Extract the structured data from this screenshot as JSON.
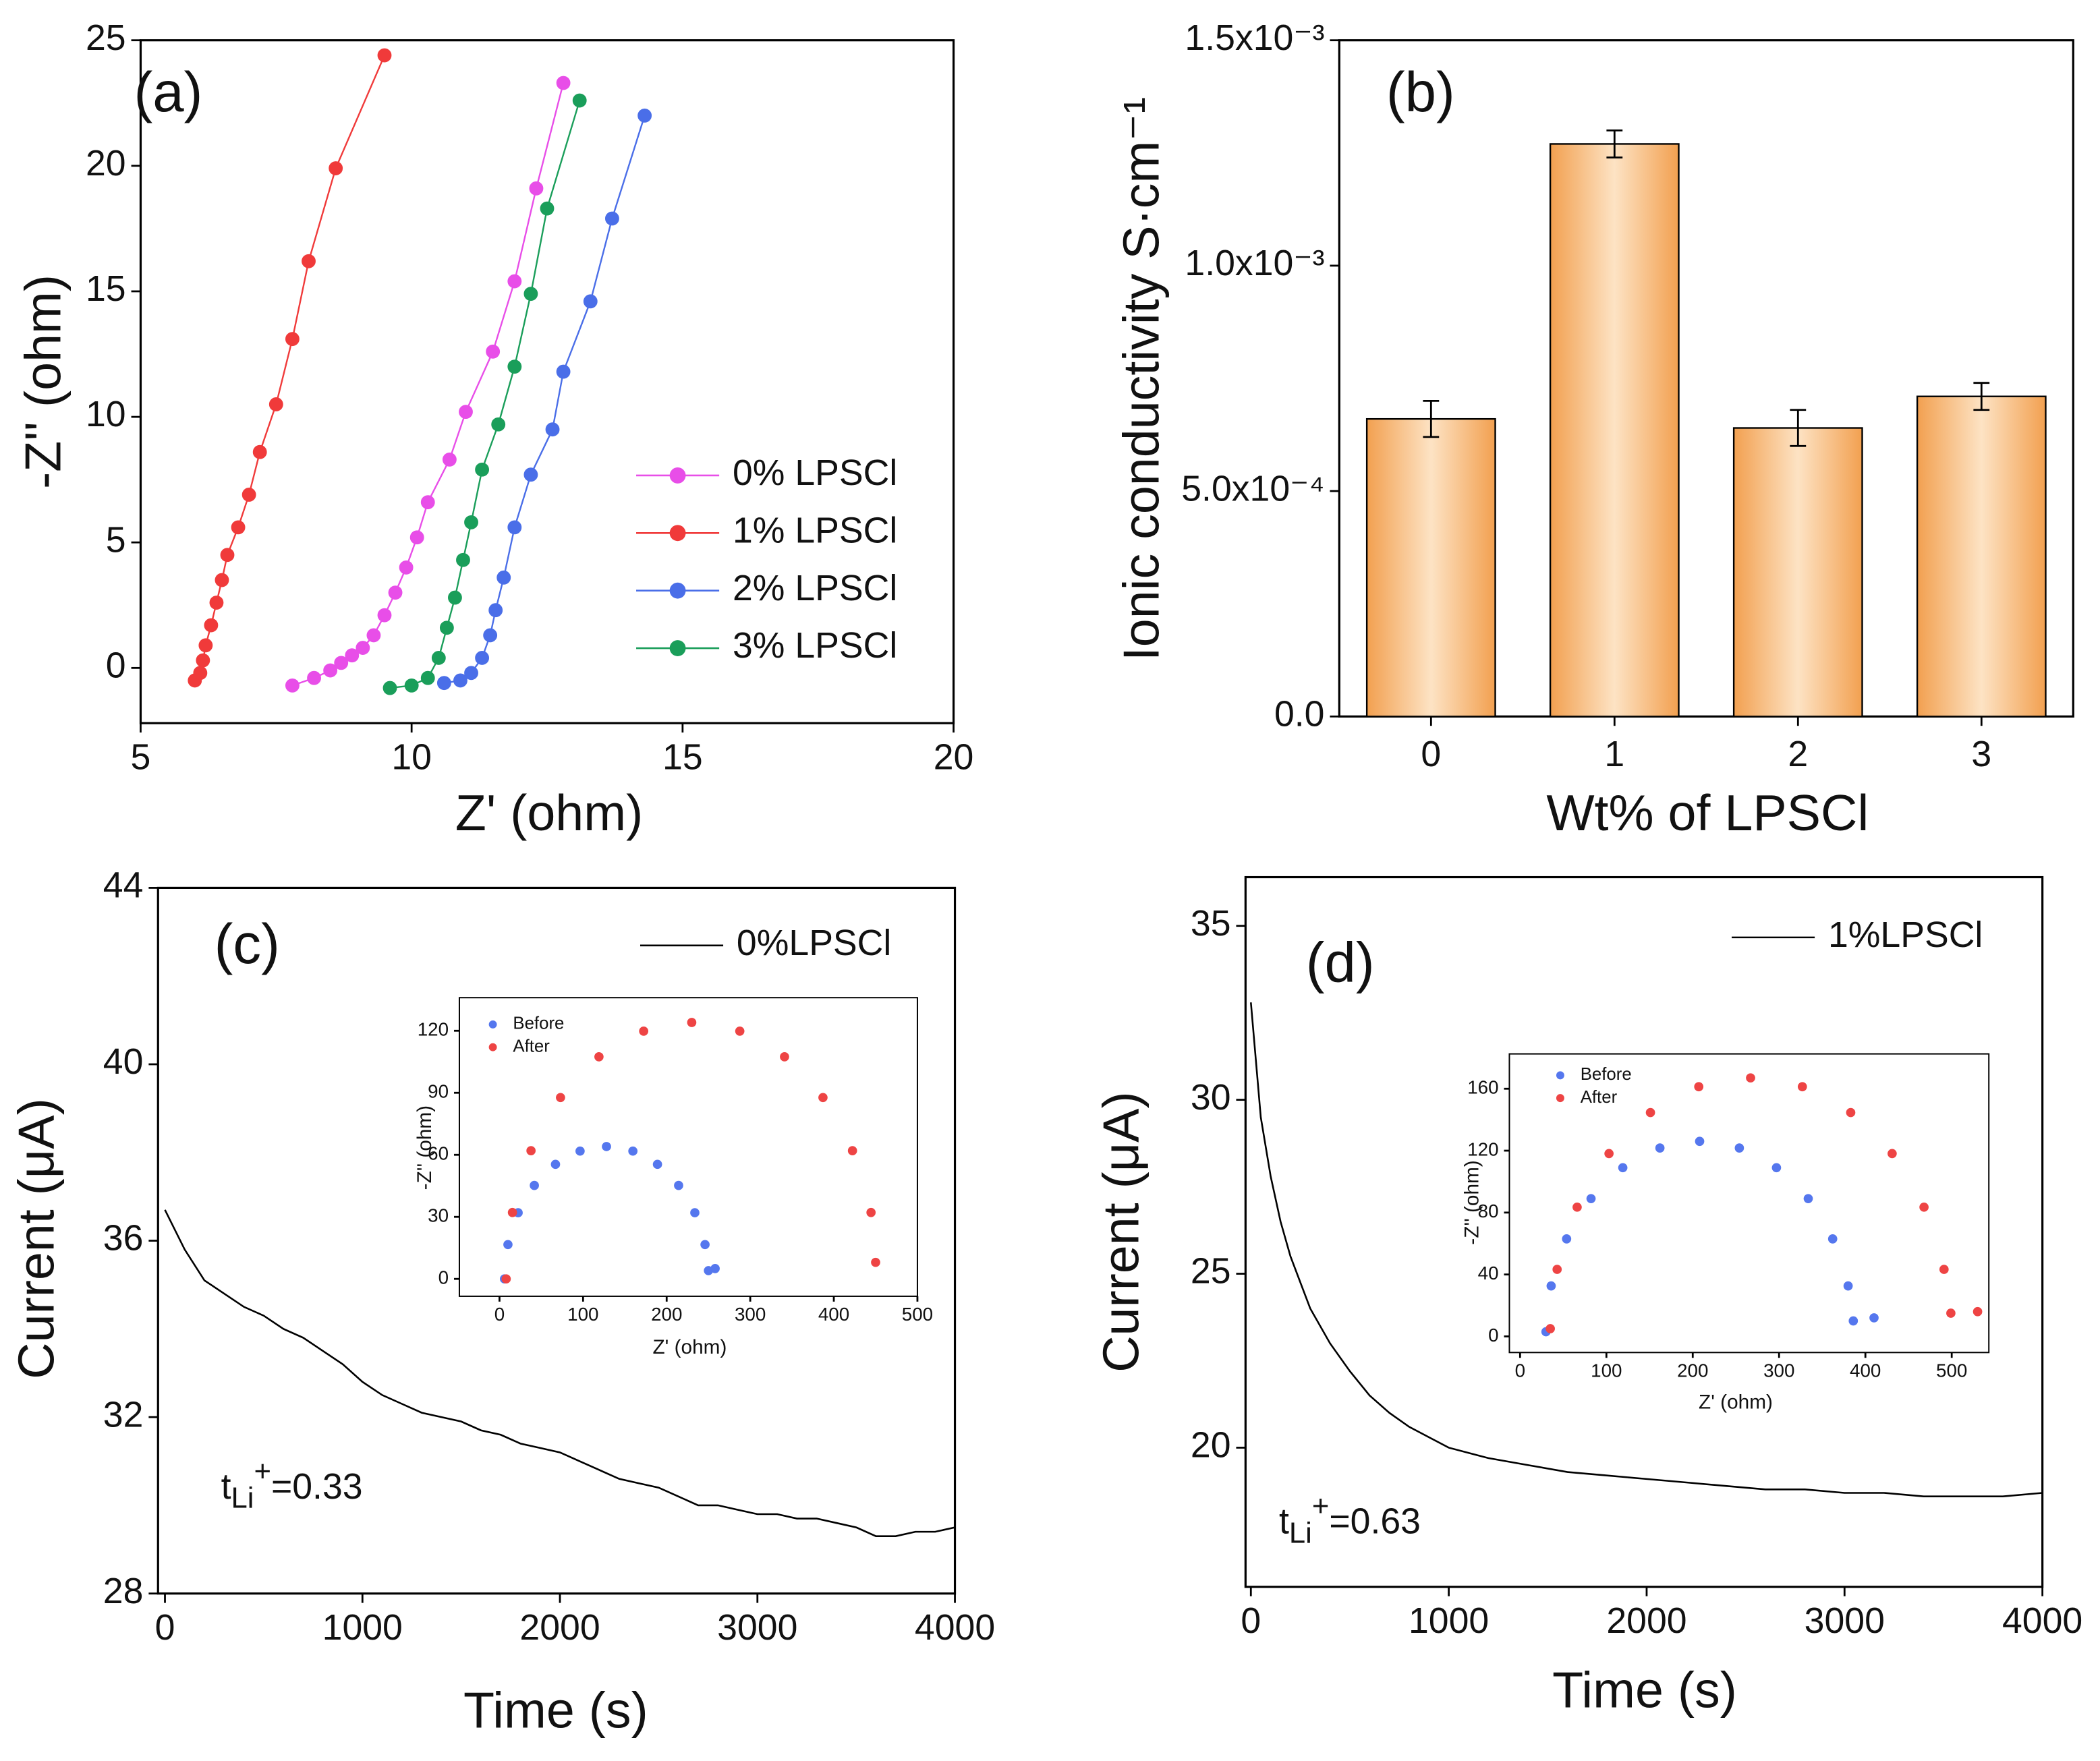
{
  "chart_data": [
    {
      "type": "line",
      "title": "(a)",
      "title_color": "#ff1a1a",
      "xlabel": "Z' (ohm)",
      "ylabel": "-Z'' (ohm)",
      "xlim": [
        5,
        20
      ],
      "ylim": [
        -2.2,
        25
      ],
      "xticks": [
        5,
        10,
        15,
        20
      ],
      "yticks": [
        0,
        5,
        10,
        15,
        20,
        25
      ],
      "legend": "right",
      "markers": true,
      "series": [
        {
          "name": "0% LPSCl",
          "color": "#e84ee8",
          "x": [
            7.8,
            8.2,
            8.5,
            8.7,
            8.9,
            9.1,
            9.3,
            9.5,
            9.7,
            9.9,
            10.1,
            10.3,
            10.7,
            11.0,
            11.5,
            11.9,
            12.3,
            12.8
          ],
          "values": [
            -0.7,
            -0.4,
            -0.1,
            0.2,
            0.5,
            0.8,
            1.3,
            2.1,
            3.0,
            4.0,
            5.2,
            6.6,
            8.3,
            10.2,
            12.6,
            15.4,
            19.1,
            23.3
          ]
        },
        {
          "name": "1% LPSCl",
          "color": "#f03a3a",
          "x": [
            6.0,
            6.1,
            6.15,
            6.2,
            6.3,
            6.4,
            6.5,
            6.6,
            6.8,
            7.0,
            7.2,
            7.5,
            7.8,
            8.1,
            8.6,
            9.5
          ],
          "values": [
            -0.5,
            -0.2,
            0.3,
            0.9,
            1.7,
            2.6,
            3.5,
            4.5,
            5.6,
            6.9,
            8.6,
            10.5,
            13.1,
            16.2,
            19.9,
            24.4
          ]
        },
        {
          "name": "2% LPSCl",
          "color": "#4a6ee8",
          "x": [
            10.6,
            10.9,
            11.1,
            11.3,
            11.45,
            11.55,
            11.7,
            11.9,
            12.2,
            12.6,
            12.8,
            13.3,
            13.7,
            14.3
          ],
          "values": [
            -0.6,
            -0.5,
            -0.2,
            0.4,
            1.3,
            2.3,
            3.6,
            5.6,
            7.7,
            9.5,
            11.8,
            14.6,
            17.9,
            22.0
          ]
        },
        {
          "name": "3% LPSCl",
          "color": "#1a9e5a",
          "x": [
            9.6,
            10.0,
            10.3,
            10.5,
            10.65,
            10.8,
            10.95,
            11.1,
            11.3,
            11.6,
            11.9,
            12.2,
            12.5,
            13.1
          ],
          "values": [
            -0.8,
            -0.7,
            -0.4,
            0.4,
            1.6,
            2.8,
            4.3,
            5.8,
            7.9,
            9.7,
            12.0,
            14.9,
            18.3,
            22.6
          ]
        }
      ]
    },
    {
      "type": "bar",
      "title": "(b)",
      "title_color": "#ff1a1a",
      "xlabel": "Wt% of LPSCl",
      "ylabel": "Ionic conductivity S·cm⁻¹",
      "categories": [
        "0",
        "1",
        "2",
        "3"
      ],
      "values": [
        0.00066,
        0.00127,
        0.00064,
        0.00071
      ],
      "errors": [
        4e-05,
        3e-05,
        4e-05,
        3e-05
      ],
      "color": "#f2a050",
      "ylim": [
        0,
        0.0015
      ],
      "yticks": [
        {
          "value": 0,
          "label": "0.0"
        },
        {
          "value": 0.0005,
          "label": "5.0x10⁻⁴"
        },
        {
          "value": 0.001,
          "label": "1.0x10⁻³"
        },
        {
          "value": 0.0015,
          "label": "1.5x10⁻³"
        }
      ]
    },
    {
      "type": "line",
      "title": "(c)",
      "title_color": "#ff1a1a",
      "xlabel": "Time (s)",
      "ylabel": "Current (μA)",
      "annotation": [
        "t",
        "Li",
        "+",
        "=0.33"
      ],
      "xlim": [
        -35,
        4000
      ],
      "ylim": [
        28,
        44
      ],
      "xticks": [
        0,
        1000,
        2000,
        3000,
        4000
      ],
      "yticks": [
        28,
        32,
        36,
        40,
        44
      ],
      "legend": "upper right",
      "x": [
        0,
        100,
        200,
        300,
        400,
        500,
        600,
        700,
        800,
        900,
        1000,
        1100,
        1200,
        1300,
        1400,
        1500,
        1600,
        1700,
        1800,
        1900,
        2000,
        2100,
        2200,
        2300,
        2400,
        2500,
        2600,
        2700,
        2800,
        2900,
        3000,
        3100,
        3200,
        3300,
        3400,
        3500,
        3600,
        3700,
        3800,
        3900,
        4000
      ],
      "series": [
        {
          "name": "0%LPSCl",
          "color": "#000000",
          "values": [
            36.7,
            35.8,
            35.1,
            34.8,
            34.5,
            34.3,
            34.0,
            33.8,
            33.5,
            33.2,
            32.8,
            32.5,
            32.3,
            32.1,
            32.0,
            31.9,
            31.7,
            31.6,
            31.4,
            31.3,
            31.2,
            31.0,
            30.8,
            30.6,
            30.5,
            30.4,
            30.2,
            30.0,
            30.0,
            29.9,
            29.8,
            29.8,
            29.7,
            29.7,
            29.6,
            29.5,
            29.3,
            29.3,
            29.4,
            29.4,
            29.5
          ]
        }
      ]
    },
    {
      "type": "scatter",
      "xlabel": "Z' (ohm)",
      "ylabel": "-Z'' (ohm)",
      "xlim": [
        -48,
        500
      ],
      "ylim": [
        -8.4,
        136
      ],
      "xticks": [
        0,
        100,
        200,
        300,
        400,
        500
      ],
      "yticks": [
        0,
        30,
        60,
        90,
        120
      ],
      "legend": "upper left",
      "series": [
        {
          "name": "Before",
          "color": "#5577ee",
          "x": [
            6,
            10.1,
            22.3,
            41.7,
            67,
            96.4,
            128,
            159.6,
            189,
            214.3,
            233.7,
            245.9,
            250,
            258
          ],
          "values": [
            0,
            16.6,
            32,
            45.2,
            55.4,
            61.8,
            64,
            61.8,
            55.4,
            45.2,
            32,
            16.6,
            4,
            5
          ]
        },
        {
          "name": "After",
          "color": "#ee4444",
          "x": [
            8,
            15.5,
            37.7,
            73,
            119,
            172.5,
            230,
            287.5,
            341,
            387,
            422.3,
            444.5,
            450
          ],
          "values": [
            0,
            32.1,
            62,
            87.7,
            107.4,
            119.8,
            124,
            119.8,
            107.4,
            87.7,
            62,
            32.1,
            8
          ]
        }
      ]
    },
    {
      "type": "line",
      "title": "(d)",
      "title_color": "#ff1a1a",
      "xlabel": "Time (s)",
      "ylabel": "Current (μA)",
      "annotation": [
        "t",
        "Li",
        "+",
        "=0.63"
      ],
      "xlim": [
        -27,
        4000
      ],
      "ylim": [
        16,
        36.4
      ],
      "xticks": [
        0,
        1000,
        2000,
        3000,
        4000
      ],
      "yticks": [
        20,
        25,
        30,
        35
      ],
      "legend": "upper right",
      "x": [
        0,
        50,
        100,
        150,
        200,
        300,
        400,
        500,
        600,
        700,
        800,
        900,
        1000,
        1200,
        1400,
        1600,
        1800,
        2000,
        2200,
        2400,
        2600,
        2800,
        3000,
        3200,
        3400,
        3600,
        3800,
        4000
      ],
      "series": [
        {
          "name": "1%LPSCl",
          "color": "#000000",
          "values": [
            32.8,
            29.5,
            27.8,
            26.5,
            25.5,
            24.0,
            23.0,
            22.2,
            21.5,
            21.0,
            20.6,
            20.3,
            20.0,
            19.7,
            19.5,
            19.3,
            19.2,
            19.1,
            19.0,
            18.9,
            18.8,
            18.8,
            18.7,
            18.7,
            18.6,
            18.6,
            18.6,
            18.7
          ]
        }
      ]
    },
    {
      "type": "scatter",
      "xlabel": "Z' (ohm)",
      "ylabel": "-Z'' (ohm)",
      "xlim": [
        -12.4,
        543
      ],
      "ylim": [
        -10.4,
        182.5
      ],
      "xticks": [
        0,
        100,
        200,
        300,
        400,
        500
      ],
      "yticks": [
        0,
        40,
        80,
        120,
        160
      ],
      "legend": "upper left",
      "series": [
        {
          "name": "Before",
          "color": "#5577ee",
          "x": [
            30,
            36,
            53.9,
            82.2,
            119,
            162,
            208,
            254,
            297,
            333.8,
            362.1,
            380,
            386,
            410
          ],
          "values": [
            3,
            32.6,
            63,
            89,
            109,
            121.7,
            126,
            121.7,
            109,
            89,
            63,
            32.6,
            10,
            12
          ]
        },
        {
          "name": "After",
          "color": "#ee4444",
          "x": [
            35,
            42.9,
            66.1,
            103,
            151,
            207,
            267,
            327,
            383,
            431,
            467.9,
            491.1,
            499,
            530
          ],
          "values": [
            5,
            43.3,
            83.5,
            118.1,
            144.6,
            161.3,
            167,
            161.3,
            144.6,
            118.1,
            83.5,
            43.3,
            15,
            16
          ]
        }
      ]
    }
  ]
}
